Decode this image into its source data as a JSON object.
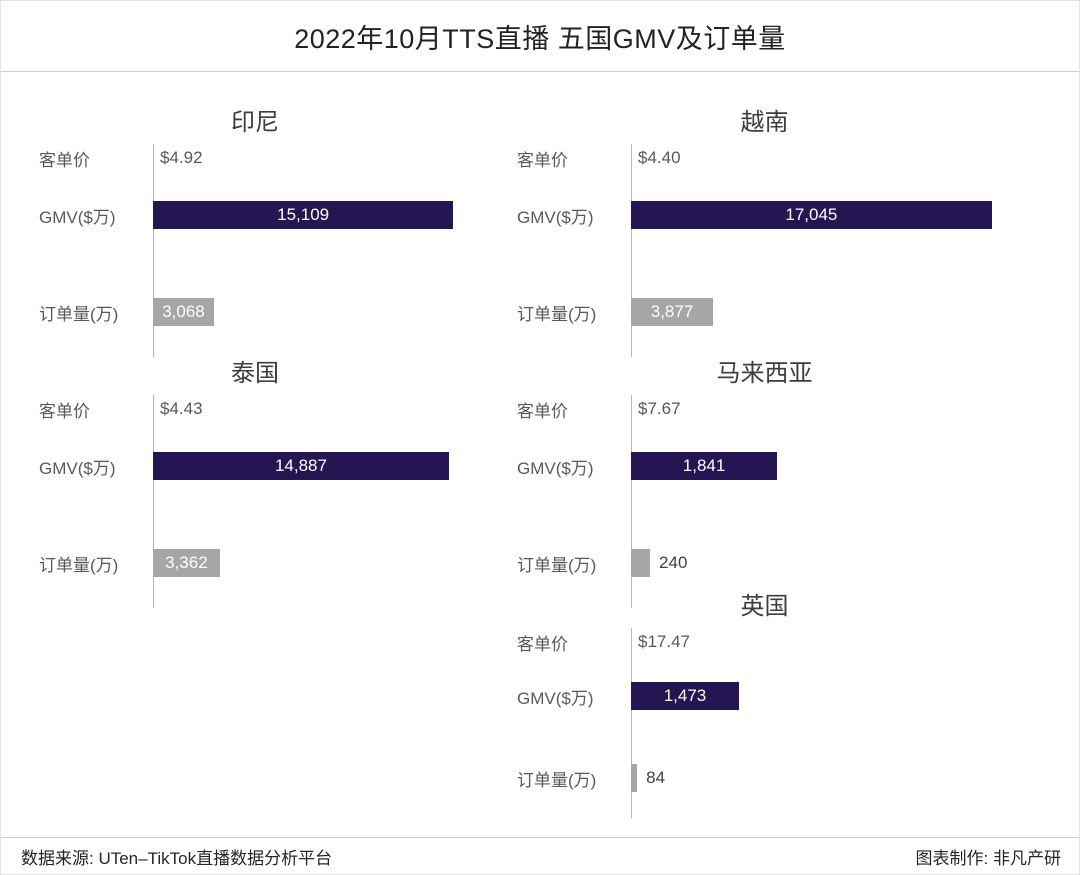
{
  "page": {
    "title": "2022年10月TTS直播 五国GMV及订单量",
    "footer": {
      "source": "数据来源: UTen–TikTok直播数据分析平台",
      "credit": "图表制作: 非凡产研"
    }
  },
  "colors": {
    "gmv_bar": "#251653",
    "orders_bar": "#a6a6a6",
    "axis_line": "#b7b7b7",
    "label_text": "#595959",
    "value_inside": "#ffffff",
    "value_outside": "#404040"
  },
  "chart_data": [
    {
      "type": "bar",
      "orientation": "horizontal",
      "title": "印尼",
      "axis_max": 16000,
      "compact": false,
      "categories": [
        "客单价",
        "GMV($万)",
        "订单量(万)"
      ],
      "rows": [
        {
          "kind": "price",
          "category": "客单价",
          "value": 4.92,
          "label": "$4.92",
          "bar": false
        },
        {
          "kind": "gmv",
          "category": "GMV($万)",
          "value": 15109,
          "label": "15,109",
          "bar": true,
          "label_inside": true
        },
        {
          "kind": "orders",
          "category": "订单量(万)",
          "value": 3068,
          "label": "3,068",
          "bar": true,
          "label_inside": true
        }
      ]
    },
    {
      "type": "bar",
      "orientation": "horizontal",
      "title": "越南",
      "axis_max": 18000,
      "compact": false,
      "categories": [
        "客单价",
        "GMV($万)",
        "订单量(万)"
      ],
      "rows": [
        {
          "kind": "price",
          "category": "客单价",
          "value": 4.4,
          "label": "$4.40",
          "bar": false
        },
        {
          "kind": "gmv",
          "category": "GMV($万)",
          "value": 17045,
          "label": "17,045",
          "bar": true,
          "label_inside": true
        },
        {
          "kind": "orders",
          "category": "订单量(万)",
          "value": 3877,
          "label": "3,877",
          "bar": true,
          "label_inside": true
        }
      ]
    },
    {
      "type": "bar",
      "orientation": "horizontal",
      "title": "泰国",
      "axis_max": 16000,
      "compact": false,
      "categories": [
        "客单价",
        "GMV($万)",
        "订单量(万)"
      ],
      "rows": [
        {
          "kind": "price",
          "category": "客单价",
          "value": 4.43,
          "label": "$4.43",
          "bar": false
        },
        {
          "kind": "gmv",
          "category": "GMV($万)",
          "value": 14887,
          "label": "14,887",
          "bar": true,
          "label_inside": true
        },
        {
          "kind": "orders",
          "category": "订单量(万)",
          "value": 3362,
          "label": "3,362",
          "bar": true,
          "label_inside": true
        }
      ]
    },
    {
      "type": "bar",
      "orientation": "horizontal",
      "title": "马来西亚",
      "axis_max": 4800,
      "compact": false,
      "categories": [
        "客单价",
        "GMV($万)",
        "订单量(万)"
      ],
      "rows": [
        {
          "kind": "price",
          "category": "客单价",
          "value": 7.67,
          "label": "$7.67",
          "bar": false
        },
        {
          "kind": "gmv",
          "category": "GMV($万)",
          "value": 1841,
          "label": "1,841",
          "bar": true,
          "label_inside": true
        },
        {
          "kind": "orders",
          "category": "订单量(万)",
          "value": 240,
          "label": "240",
          "bar": true,
          "label_inside": false
        }
      ]
    },
    {
      "type": "bar",
      "orientation": "horizontal",
      "title": "英国",
      "axis_max": 5200,
      "compact": true,
      "categories": [
        "客单价",
        "GMV($万)",
        "订单量(万)"
      ],
      "rows": [
        {
          "kind": "price",
          "category": "客单价",
          "value": 17.47,
          "label": "$17.47",
          "bar": false
        },
        {
          "kind": "gmv",
          "category": "GMV($万)",
          "value": 1473,
          "label": "1,473",
          "bar": true,
          "label_inside": true
        },
        {
          "kind": "orders",
          "category": "订单量(万)",
          "value": 84,
          "label": "84",
          "bar": true,
          "label_inside": false
        }
      ]
    }
  ]
}
